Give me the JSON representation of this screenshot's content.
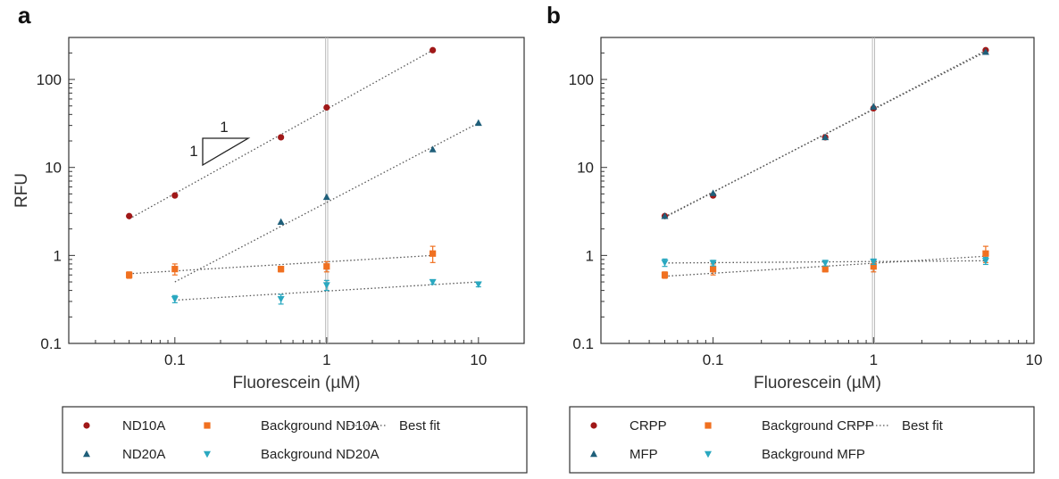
{
  "chart_data": [
    {
      "panel": "a",
      "type": "scatter",
      "xlabel": "Fluorescein (µM)",
      "ylabel": "RFU",
      "xscale": "log",
      "yscale": "log",
      "xlim": [
        0.02,
        20
      ],
      "ylim": [
        0.1,
        300
      ],
      "xticks": [
        "0.1",
        "1",
        "10"
      ],
      "yticks": [
        "0.1",
        "1",
        "10",
        "100"
      ],
      "vline": 1,
      "slope_triangle": {
        "run_label": "1",
        "rise_label": "1"
      },
      "series": [
        {
          "name": "ND10A",
          "marker": "circle",
          "color": "#a01818",
          "x": [
            0.05,
            0.1,
            0.5,
            1,
            5
          ],
          "y": [
            2.8,
            4.8,
            22,
            48,
            215
          ]
        },
        {
          "name": "ND20A",
          "marker": "triangle-up",
          "color": "#1f5f7a",
          "x": [
            0.5,
            1,
            5,
            10
          ],
          "y": [
            2.4,
            4.6,
            16,
            32
          ]
        },
        {
          "name": "Background ND10A",
          "marker": "square",
          "color": "#f07020",
          "x": [
            0.05,
            0.1,
            0.5,
            1,
            5
          ],
          "y": [
            0.6,
            0.7,
            0.7,
            0.75,
            1.05
          ],
          "err": [
            0.05,
            0.1,
            0.05,
            0.1,
            0.22
          ]
        },
        {
          "name": "Background ND20A",
          "marker": "triangle-down",
          "color": "#2aa8c0",
          "x": [
            0.1,
            0.5,
            1,
            5,
            10
          ],
          "y": [
            0.32,
            0.32,
            0.46,
            0.5,
            0.47
          ],
          "err": [
            0.03,
            0.04,
            0.06,
            0.03,
            0.03
          ]
        }
      ],
      "fits": [
        {
          "x": [
            0.05,
            5
          ],
          "y": [
            2.6,
            215
          ]
        },
        {
          "x": [
            0.1,
            10
          ],
          "y": [
            0.5,
            32
          ]
        },
        {
          "x": [
            0.05,
            5
          ],
          "y": [
            0.62,
            1.0
          ]
        },
        {
          "x": [
            0.1,
            10
          ],
          "y": [
            0.31,
            0.5
          ]
        }
      ],
      "legend": {
        "placement": "bottom",
        "best_fit_label": "Best fit"
      }
    },
    {
      "panel": "b",
      "type": "scatter",
      "xlabel": "Fluorescein (µM)",
      "ylabel": "",
      "xscale": "log",
      "yscale": "log",
      "xlim": [
        0.02,
        10
      ],
      "ylim": [
        0.1,
        300
      ],
      "xticks": [
        "0.1",
        "1",
        "10"
      ],
      "yticks": [
        "0.1",
        "1",
        "10",
        "100"
      ],
      "vline": 1,
      "series": [
        {
          "name": "CRPP",
          "marker": "circle",
          "color": "#a01818",
          "x": [
            0.05,
            0.1,
            0.5,
            1,
            5
          ],
          "y": [
            2.8,
            4.8,
            22,
            47,
            215
          ]
        },
        {
          "name": "MFP",
          "marker": "triangle-up",
          "color": "#1f5f7a",
          "x": [
            0.05,
            0.1,
            0.5,
            1,
            5
          ],
          "y": [
            2.8,
            5.1,
            22,
            49,
            205
          ]
        },
        {
          "name": "Background CRPP",
          "marker": "square",
          "color": "#f07020",
          "x": [
            0.05,
            0.1,
            0.5,
            1,
            5
          ],
          "y": [
            0.6,
            0.7,
            0.7,
            0.75,
            1.05
          ],
          "err": [
            0.05,
            0.1,
            0.05,
            0.1,
            0.22
          ]
        },
        {
          "name": "Background MFP",
          "marker": "triangle-down",
          "color": "#2aa8c0",
          "x": [
            0.05,
            0.1,
            0.5,
            1,
            5
          ],
          "y": [
            0.83,
            0.82,
            0.82,
            0.85,
            0.87
          ],
          "err": [
            0.08,
            0.06,
            0.06,
            0.06,
            0.08
          ]
        }
      ],
      "fits": [
        {
          "x": [
            0.05,
            5
          ],
          "y": [
            2.7,
            213
          ]
        },
        {
          "x": [
            0.05,
            5
          ],
          "y": [
            2.75,
            206
          ]
        },
        {
          "x": [
            0.05,
            5
          ],
          "y": [
            0.58,
            0.98
          ]
        },
        {
          "x": [
            0.05,
            5
          ],
          "y": [
            0.82,
            0.87
          ]
        }
      ],
      "legend": {
        "placement": "bottom",
        "best_fit_label": "Best fit"
      }
    }
  ]
}
